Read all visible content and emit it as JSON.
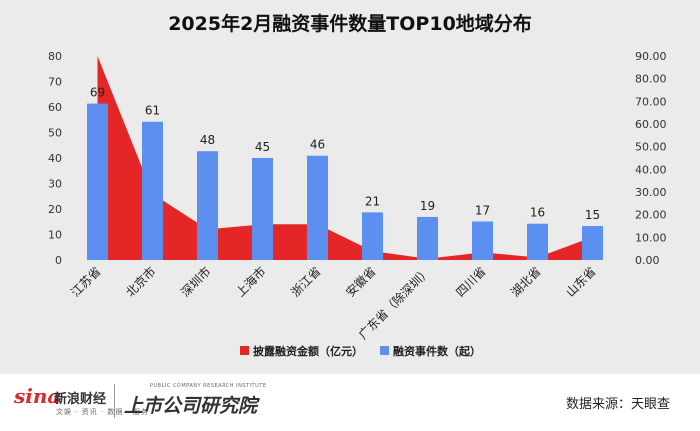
{
  "chart_data": {
    "type": "bar",
    "title": "2025年2月融资事件数量TOP10地域分布",
    "categories": [
      "江苏省",
      "北京市",
      "深圳市",
      "上海市",
      "浙江省",
      "安徽省",
      "广东省（除深圳）",
      "四川省",
      "湖北省",
      "山东省"
    ],
    "series": [
      {
        "name": "披露融资金额（亿元）",
        "type": "area",
        "axis": "left",
        "color": "#e52626",
        "values": [
          80,
          26,
          12,
          14,
          14,
          3.5,
          0.5,
          3,
          1,
          9
        ]
      },
      {
        "name": "融资事件数（起）",
        "type": "bar",
        "axis": "right",
        "color": "#5b8ff0",
        "values": [
          69,
          61,
          48,
          45,
          46,
          21,
          19,
          17,
          16,
          15
        ],
        "labels": [
          "69",
          "61",
          "48",
          "45",
          "46",
          "21",
          "19",
          "17",
          "16",
          "15"
        ]
      }
    ],
    "left_axis": {
      "ylim": [
        0,
        80
      ],
      "ticks": [
        "0",
        "10",
        "20",
        "30",
        "40",
        "50",
        "60",
        "70",
        "80"
      ]
    },
    "right_axis": {
      "ylim": [
        0,
        90
      ],
      "ticks": [
        "0.00",
        "10.00",
        "20.00",
        "30.00",
        "40.00",
        "50.00",
        "60.00",
        "70.00",
        "80.00",
        "90.00"
      ]
    },
    "legend": "bottom",
    "grid": false
  },
  "footer": {
    "logo_text": "sina",
    "brand": "新浪财经",
    "brand_sub": "文娱 · 资讯 · 数据 · 服务",
    "institute_name": "上市公司研究院",
    "institute_sub": "PUBLIC COMPANY RESEARCH INSTITUTE",
    "source": "数据来源：天眼查"
  }
}
